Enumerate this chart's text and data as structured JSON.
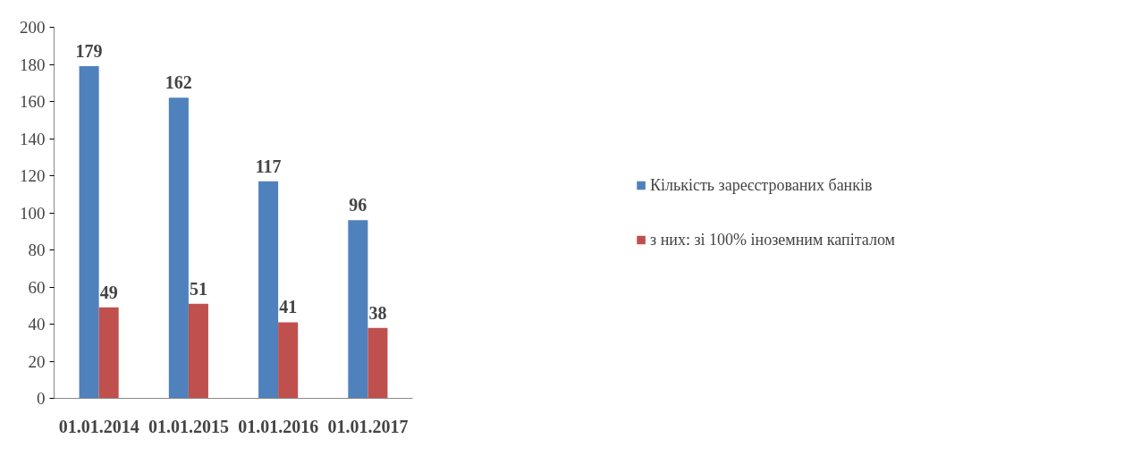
{
  "chart_data": {
    "type": "bar",
    "categories": [
      "01.01.2014",
      "01.01.2015",
      "01.01.2016",
      "01.01.2017"
    ],
    "series": [
      {
        "name": "Кількість зареєстрованих банків",
        "color": "#4f81bd",
        "values": [
          179,
          162,
          117,
          96
        ]
      },
      {
        "name": "з них: зі 100% іноземним капіталом",
        "color": "#c0504d",
        "values": [
          49,
          51,
          41,
          38
        ]
      }
    ],
    "ylim": [
      0,
      200
    ],
    "yticks": [
      0,
      20,
      40,
      60,
      80,
      100,
      120,
      140,
      160,
      180,
      200
    ],
    "data_labels": true,
    "grid": false,
    "legend": "right"
  }
}
